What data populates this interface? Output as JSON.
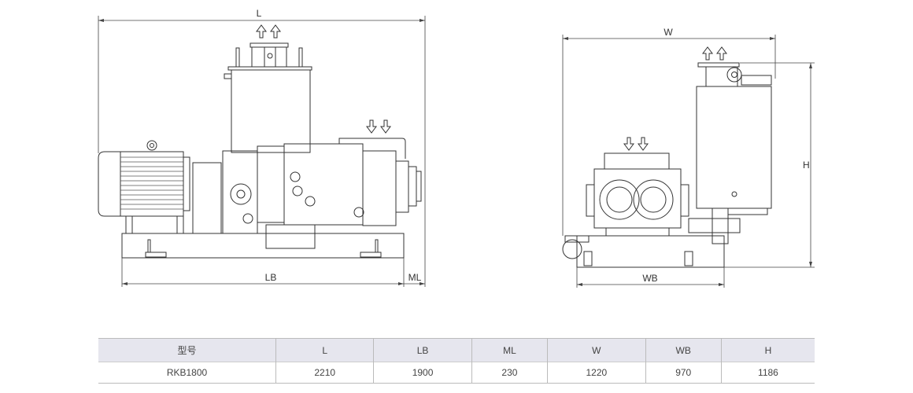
{
  "drawing": {
    "side_view": {
      "dim_L": "L",
      "dim_LB": "LB",
      "dim_ML": "ML"
    },
    "end_view": {
      "dim_W": "W",
      "dim_WB": "WB",
      "dim_H": "H"
    }
  },
  "table": {
    "headers": [
      "型号",
      "L",
      "LB",
      "ML",
      "W",
      "WB",
      "H"
    ],
    "rows": [
      [
        "RKB1800",
        "2210",
        "1900",
        "230",
        "1220",
        "970",
        "1186"
      ]
    ]
  }
}
